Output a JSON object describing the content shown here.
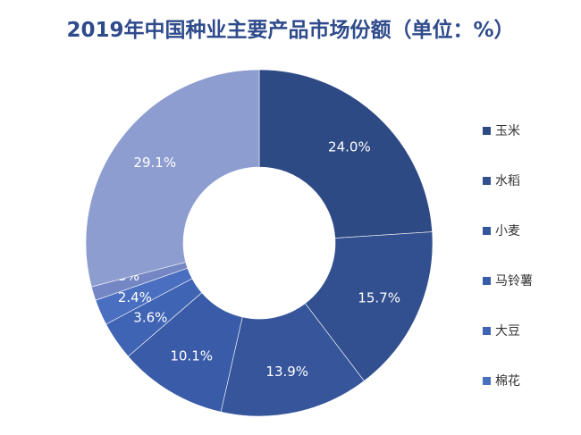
{
  "chart_data": {
    "type": "pie",
    "donut": true,
    "title": "2019年中国种业主要产品市场份额（单位：%）",
    "slices": [
      {
        "name": "玉米",
        "value": 24.0,
        "label": "24.0%",
        "color": "#2e4a84"
      },
      {
        "name": "水稻",
        "value": 15.7,
        "label": "15.7%",
        "color": "#32508f"
      },
      {
        "name": "小麦",
        "value": 13.9,
        "label": "13.9%",
        "color": "#36559b"
      },
      {
        "name": "马铃薯",
        "value": 10.1,
        "label": "10.1%",
        "color": "#3a5ba7"
      },
      {
        "name": "大豆",
        "value": 3.6,
        "label": "3.6%",
        "color": "#4064b4"
      },
      {
        "name": "棉花",
        "value": 2.4,
        "label": "2.4%",
        "color": "#4a6ec0"
      },
      {
        "name": "",
        "value": 1.3,
        "label": "1.3%",
        "color": "#7486c4"
      },
      {
        "name": "",
        "value": 29.1,
        "label": "29.1%",
        "color": "#8e9dd0"
      }
    ],
    "legend": [
      "玉米",
      "水稻",
      "小麦",
      "马铃薯",
      "大豆",
      "棉花"
    ],
    "legend_position": "right"
  }
}
